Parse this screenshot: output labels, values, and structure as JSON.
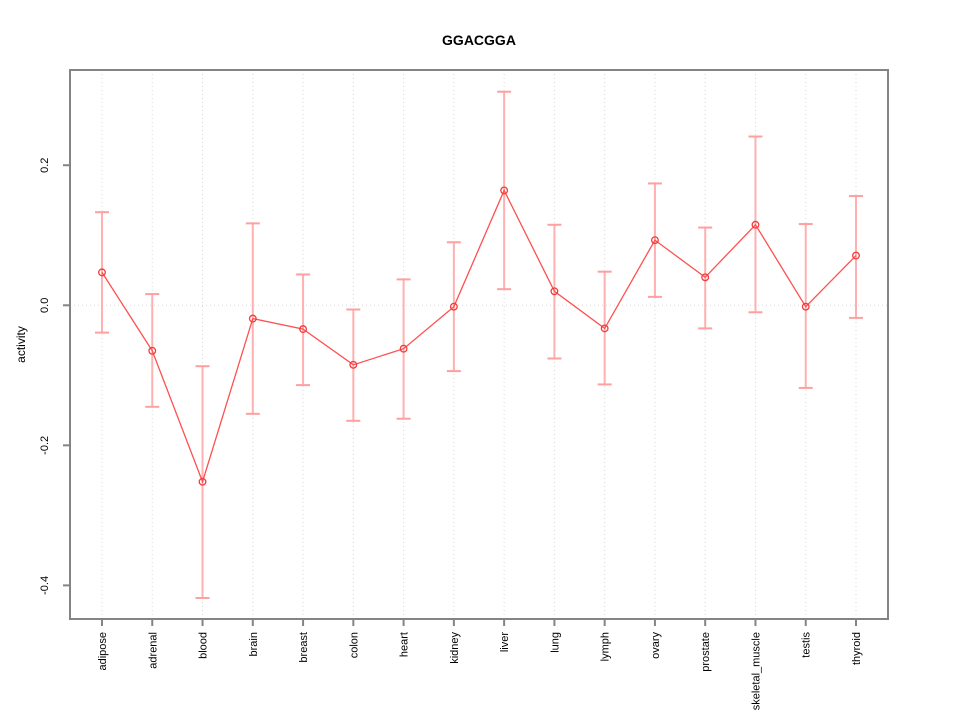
{
  "chart_data": {
    "type": "line",
    "title": "GGACGGA",
    "xlabel": "",
    "ylabel": "activity",
    "categories": [
      "adipose",
      "adrenal",
      "blood",
      "brain",
      "breast",
      "colon",
      "heart",
      "kidney",
      "liver",
      "lung",
      "lymph",
      "ovary",
      "prostate",
      "skeletal_muscle",
      "testis",
      "thyroid"
    ],
    "series": [
      {
        "name": "activity",
        "values": [
          0.047,
          -0.065,
          -0.252,
          -0.019,
          -0.034,
          -0.085,
          -0.062,
          -0.002,
          0.164,
          0.02,
          -0.033,
          0.093,
          0.04,
          0.115,
          -0.002,
          0.071
        ],
        "error_low": [
          -0.039,
          -0.145,
          -0.418,
          -0.155,
          -0.114,
          -0.165,
          -0.162,
          -0.094,
          0.023,
          -0.076,
          -0.113,
          0.012,
          -0.033,
          -0.01,
          -0.118,
          -0.018
        ],
        "error_high": [
          0.133,
          0.016,
          -0.087,
          0.117,
          0.044,
          -0.006,
          0.037,
          0.09,
          0.305,
          0.115,
          0.048,
          0.174,
          0.111,
          0.241,
          0.116,
          0.156
        ]
      }
    ],
    "ytick_values": [
      -0.4,
      -0.2,
      0.0,
      0.2
    ],
    "ytick_labels": [
      "-0.4",
      "-0.2",
      "0.0",
      "0.2"
    ],
    "ylim": [
      -0.448,
      0.336
    ],
    "grid": {
      "vertical_dotted_per_category": true,
      "horizontal_dotted_zero_line": true
    },
    "legend": "none",
    "marker": "open-circle",
    "colors": {
      "line": "#ff5050",
      "marker": "#f03c3c",
      "error_bar": "#ffb0b0",
      "error_cap": "#ff9f9f",
      "frame": "#848484",
      "grid": "#d8d8d8",
      "text": "#000000"
    }
  }
}
